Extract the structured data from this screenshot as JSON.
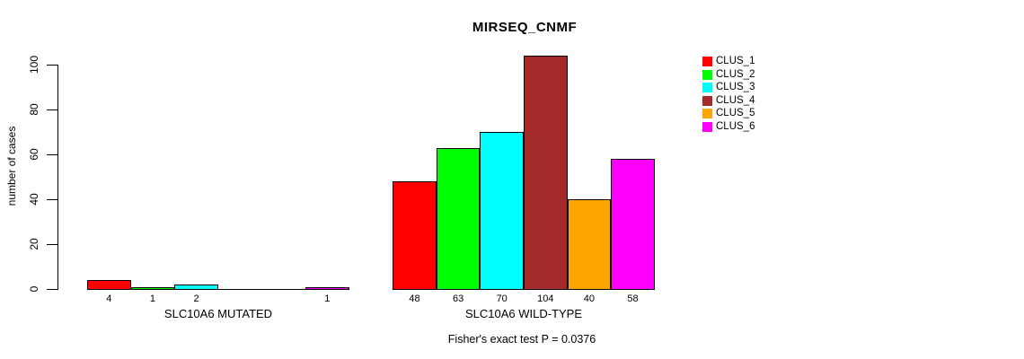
{
  "chart_data": {
    "type": "bar",
    "title": "MIRSEQ_CNMF",
    "ylabel": "number of cases",
    "ylim": [
      0,
      104
    ],
    "yticks": [
      0,
      20,
      40,
      60,
      80,
      100
    ],
    "grid": false,
    "legend_position": "right",
    "categories": [
      "CLUS_1",
      "CLUS_2",
      "CLUS_3",
      "CLUS_4",
      "CLUS_5",
      "CLUS_6"
    ],
    "series_colors": [
      "#FF0000",
      "#00FF00",
      "#00FFFF",
      "#A52A2A",
      "#FFA500",
      "#FF00FF"
    ],
    "groups": [
      {
        "label": "SLC10A6 MUTATED",
        "values": [
          4,
          1,
          2,
          0,
          0,
          1
        ],
        "bar_labels": [
          "4",
          "1",
          "2",
          "",
          "",
          "1"
        ]
      },
      {
        "label": "SLC10A6 WILD-TYPE",
        "values": [
          48,
          63,
          70,
          104,
          40,
          58
        ],
        "bar_labels": [
          "48",
          "63",
          "70",
          "104",
          "40",
          "58"
        ]
      }
    ],
    "legend": [
      "CLUS_1",
      "CLUS_2",
      "CLUS_3",
      "CLUS_4",
      "CLUS_5",
      "CLUS_6"
    ],
    "footer": "Fisher's exact test P = 0.0376"
  }
}
